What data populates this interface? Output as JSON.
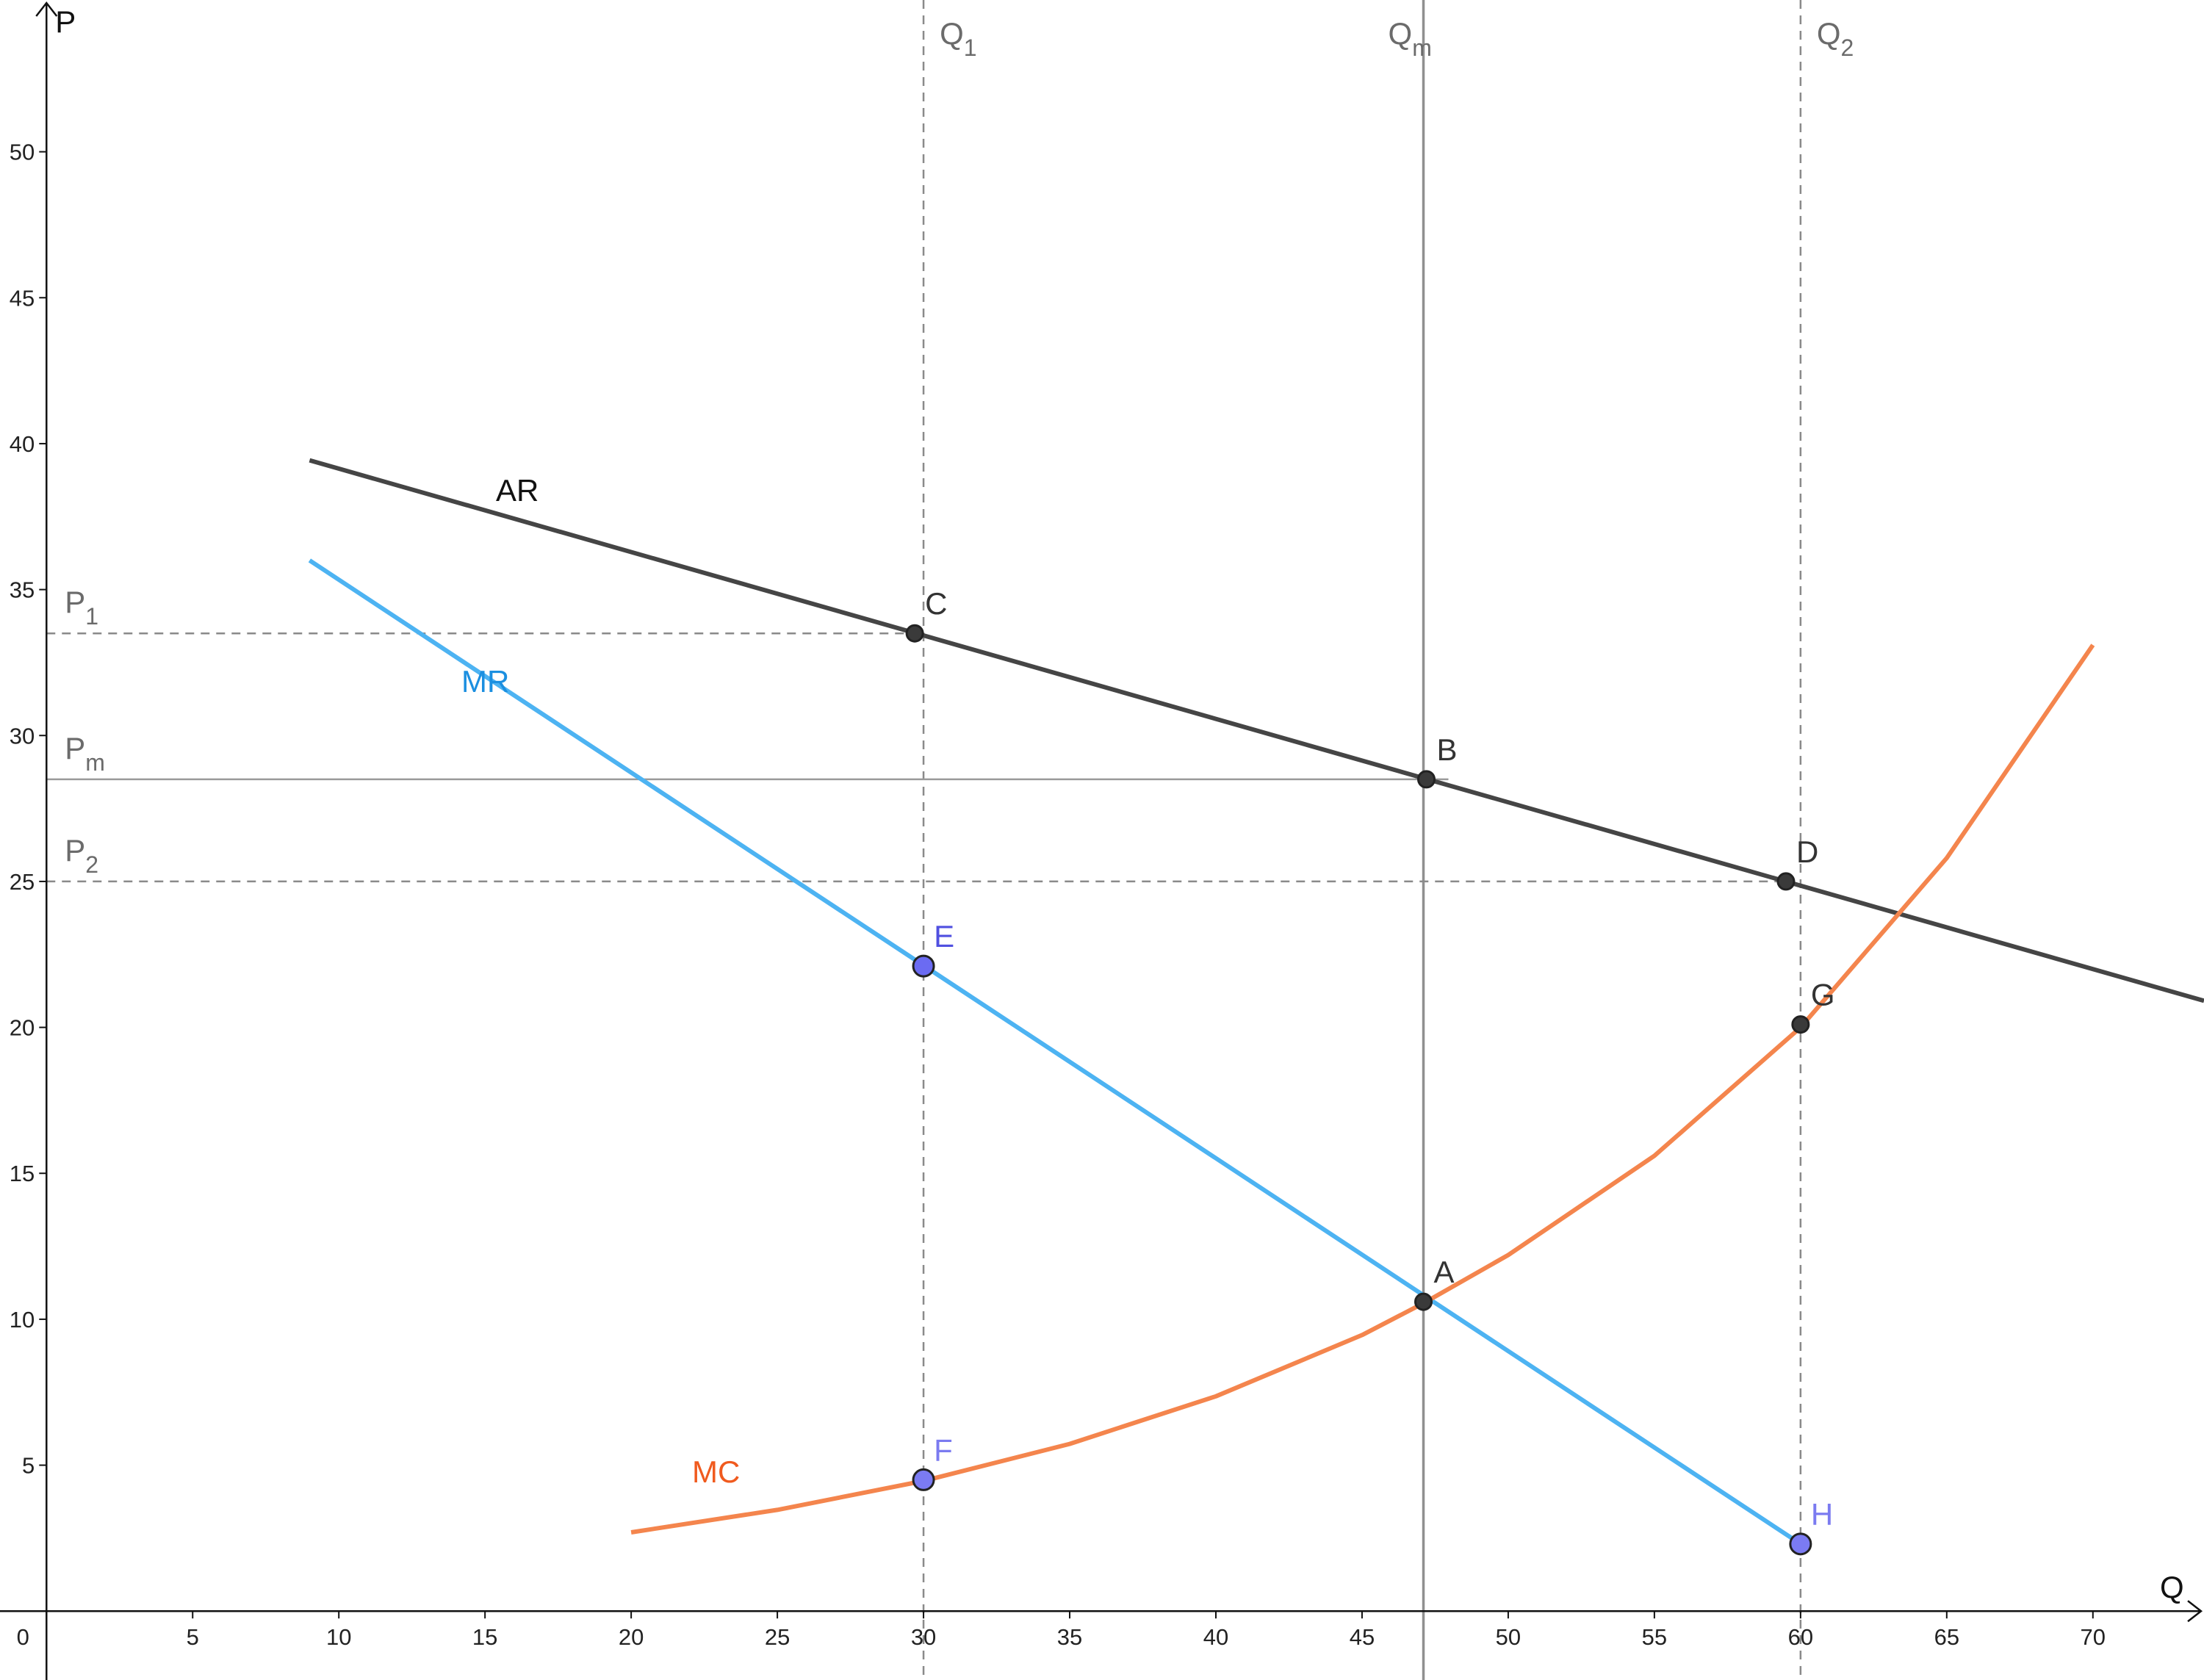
{
  "chart_data": {
    "type": "line",
    "x_label": "Q",
    "y_label": "P",
    "xlim": [
      -1.59,
      73.8
    ],
    "ylim": [
      -2.36,
      55.2
    ],
    "xticks": [
      0,
      5,
      10,
      15,
      20,
      25,
      30,
      35,
      40,
      45,
      50,
      55,
      60,
      65,
      70
    ],
    "yticks": [
      5,
      10,
      15,
      20,
      25,
      30,
      35,
      40,
      45,
      50
    ],
    "series": [
      {
        "name": "AR",
        "color": "#454545",
        "label_color": "#111111",
        "x": [
          9,
          73.8
        ],
        "values": [
          39.43,
          20.91
        ]
      },
      {
        "name": "MR",
        "color": "#4db3f2",
        "label_color": "#1b8fe0",
        "x": [
          9,
          60
        ],
        "values": [
          36.0,
          2.3
        ]
      },
      {
        "name": "MC",
        "color": "#f4854d",
        "label_color": "#f05a1e",
        "x": [
          20,
          25,
          30,
          35,
          40,
          45,
          47.1,
          50,
          55,
          60,
          65,
          70
        ],
        "values": [
          2.7,
          3.47,
          4.46,
          5.73,
          7.36,
          9.46,
          10.55,
          12.2,
          15.6,
          20.0,
          25.8,
          33.1
        ]
      }
    ],
    "points": [
      {
        "name": "A",
        "x": 47.1,
        "y": 10.6,
        "color": "#3a3a3a",
        "label_color": "#333333"
      },
      {
        "name": "B",
        "x": 47.2,
        "y": 28.5,
        "color": "#3a3a3a",
        "label_color": "#333333"
      },
      {
        "name": "C",
        "x": 29.7,
        "y": 33.5,
        "color": "#3a3a3a",
        "label_color": "#333333"
      },
      {
        "name": "D",
        "x": 59.5,
        "y": 25.0,
        "color": "#3a3a3a",
        "label_color": "#333333"
      },
      {
        "name": "E",
        "x": 30,
        "y": 22.1,
        "color": "#6b6bf2",
        "label_color": "#5050e0"
      },
      {
        "name": "F",
        "x": 30,
        "y": 4.5,
        "color": "#7b7bf2",
        "label_color": "#7b7bf0"
      },
      {
        "name": "G",
        "x": 60,
        "y": 20.1,
        "color": "#3a3a3a",
        "label_color": "#333333"
      },
      {
        "name": "H",
        "x": 60,
        "y": 2.3,
        "color": "#7b7bf2",
        "label_color": "#7b7bf0"
      }
    ],
    "vlines": [
      {
        "label": "Q",
        "subscript": "1",
        "x": 30,
        "dashed": true
      },
      {
        "label": "Q",
        "subscript": "m",
        "x": 47.1,
        "dashed": false
      },
      {
        "label": "Q",
        "subscript": "2",
        "x": 60,
        "dashed": true
      }
    ],
    "hlines": [
      {
        "label": "P",
        "subscript": "1",
        "y": 33.5,
        "dashed": true
      },
      {
        "label": "P",
        "subscript": "m",
        "y": 28.5,
        "dashed": false
      },
      {
        "label": "P",
        "subscript": "2",
        "y": 25.0,
        "dashed": true
      }
    ]
  }
}
